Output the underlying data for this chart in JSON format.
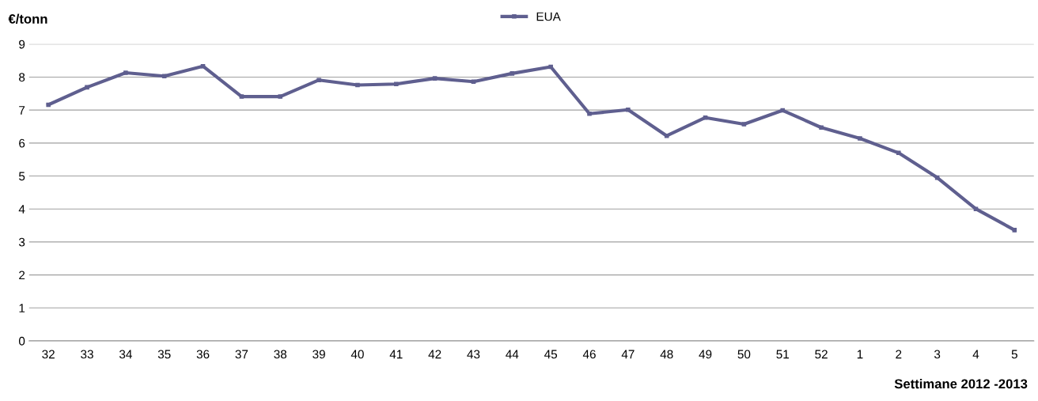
{
  "chart_data": {
    "type": "line",
    "ylabel": "€/tonn",
    "xlabel": "Settimane 2012 -2013",
    "categories": [
      "32",
      "33",
      "34",
      "35",
      "36",
      "37",
      "38",
      "39",
      "40",
      "41",
      "42",
      "43",
      "44",
      "45",
      "46",
      "47",
      "48",
      "49",
      "50",
      "51",
      "52",
      "1",
      "2",
      "3",
      "4",
      "5"
    ],
    "series": [
      {
        "name": "EUA",
        "color": "#5f5f8f",
        "values": [
          7.16,
          7.69,
          8.13,
          8.03,
          8.33,
          7.41,
          7.41,
          7.91,
          7.76,
          7.79,
          7.96,
          7.86,
          8.11,
          8.31,
          6.89,
          7.01,
          6.22,
          6.77,
          6.57,
          6.99,
          6.47,
          6.14,
          5.7,
          4.95,
          4.0,
          3.36
        ]
      }
    ],
    "ylim": [
      0,
      9
    ],
    "yticks": [
      0,
      1,
      2,
      3,
      4,
      5,
      6,
      7,
      8,
      9
    ],
    "grid": "y",
    "legend": "top",
    "marker": "square",
    "line_style": "solid"
  }
}
